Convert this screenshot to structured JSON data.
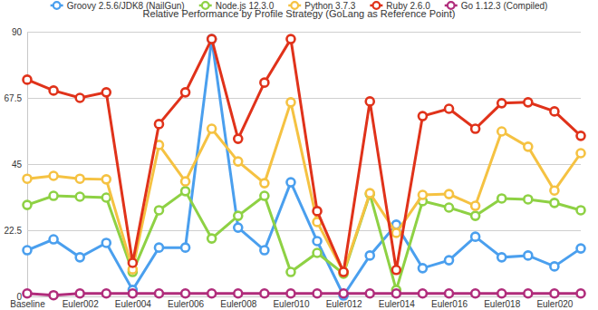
{
  "chart_data": {
    "type": "line",
    "title": "Relative Performance by Profile Strategy (GoLang as Reference Point)",
    "categories": [
      "Baseline",
      null,
      "Euler002",
      null,
      "Euler004",
      null,
      "Euler006",
      null,
      "Euler008",
      null,
      "Euler010",
      null,
      "Euler012",
      null,
      "Euler014",
      null,
      "Euler016",
      null,
      "Euler018",
      null,
      "Euler020",
      null
    ],
    "series": [
      {
        "name": "Groovy 2.5.6/JDK8 (NailGun)",
        "color": "#4a9fee",
        "marker": "circle",
        "line_style": "solid",
        "values": [
          15.7,
          19.4,
          13.3,
          18.2,
          2.2,
          16.6,
          16.6,
          87.5,
          23.4,
          15.7,
          38.8,
          18.8,
          0.3,
          13.9,
          24.4,
          9.6,
          12.3,
          20.3,
          13.3,
          13.9,
          10.2,
          16.3
        ]
      },
      {
        "name": "Node.js 12.3.0",
        "color": "#8ed144",
        "marker": "circle",
        "line_style": "solid",
        "values": [
          31.1,
          34.2,
          33.9,
          33.6,
          8.3,
          29.3,
          35.8,
          19.7,
          27.4,
          34.2,
          8.3,
          14.8,
          7.7,
          34.8,
          2.2,
          32.4,
          30.2,
          27.4,
          33.3,
          33.0,
          31.8,
          29.3
        ]
      },
      {
        "name": "Python 3.7.3",
        "color": "#f5c242",
        "marker": "circle",
        "line_style": "solid",
        "values": [
          40.0,
          41.0,
          40.0,
          39.8,
          9.2,
          51.5,
          39.1,
          57.0,
          45.9,
          38.5,
          66.0,
          25.3,
          8.3,
          35.1,
          21.6,
          34.5,
          34.8,
          30.8,
          56.1,
          50.9,
          36.0,
          48.7
        ]
      },
      {
        "name": "Ruby 2.6.0",
        "color": "#e0321a",
        "marker": "circle",
        "line_style": "solid",
        "values": [
          73.7,
          70.0,
          67.5,
          69.4,
          11.4,
          58.6,
          69.4,
          87.5,
          53.6,
          72.7,
          87.5,
          29.0,
          8.3,
          66.3,
          9.0,
          61.3,
          63.8,
          57.0,
          65.7,
          66.0,
          62.9,
          54.6
        ]
      },
      {
        "name": "Go 1.12.3 (Compiled)",
        "color": "#b02c7b",
        "marker": "circle",
        "line_style": "solid",
        "values": [
          1.0,
          0.4,
          1.0,
          1.0,
          1.0,
          1.0,
          1.0,
          1.0,
          1.0,
          1.0,
          1.0,
          1.0,
          1.0,
          1.0,
          1.0,
          1.0,
          1.0,
          1.0,
          1.0,
          1.0,
          1.0,
          1.0
        ]
      }
    ],
    "ylim": [
      0,
      90
    ],
    "yticks": [
      0,
      22.5,
      45,
      67.5,
      90
    ],
    "grid": true,
    "legend": "top"
  }
}
